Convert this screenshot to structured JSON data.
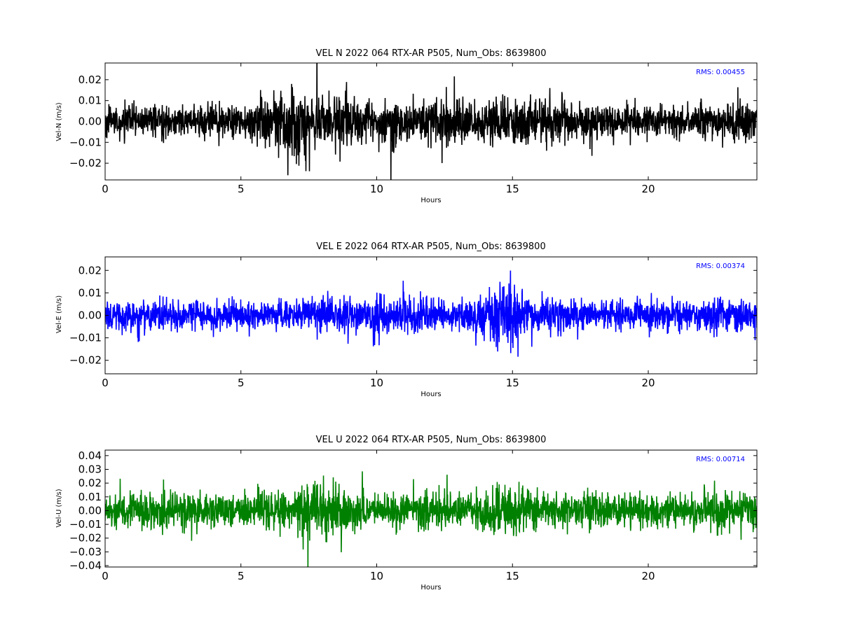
{
  "chart_data": [
    {
      "type": "line",
      "title": "VEL N 2022 064 RTX-AR  P505, Num_Obs: 8639800",
      "xlabel": "Hours",
      "ylabel": "Vel-N (m/s)",
      "xlim": [
        0,
        24
      ],
      "ylim": [
        -0.028,
        0.028
      ],
      "xticks": [
        0,
        5,
        10,
        15,
        20
      ],
      "yticks": [
        -0.02,
        -0.01,
        0.0,
        0.01,
        0.02
      ],
      "ytick_labels": [
        "−0.02",
        "−0.01",
        "0.00",
        "0.01",
        "0.02"
      ],
      "grid": false,
      "annotation": "RMS:  0.00455",
      "annotation_color": "#0000ff",
      "series": [
        {
          "color": "#000000",
          "amplitude_envelope": {
            "x": [
              0,
              1,
              2,
              3,
              4,
              5,
              5.5,
              6,
              6.5,
              7,
              7.3,
              8,
              8.5,
              9,
              9.5,
              10,
              11,
              12,
              12.5,
              13,
              14,
              15,
              16,
              17,
              18,
              19,
              20,
              21,
              22,
              23,
              24
            ],
            "y": [
              0.0085,
              0.0085,
              0.009,
              0.0085,
              0.0085,
              0.0085,
              0.013,
              0.016,
              0.018,
              0.019,
              0.02,
              0.017,
              0.015,
              0.014,
              0.012,
              0.011,
              0.012,
              0.013,
              0.015,
              0.014,
              0.013,
              0.014,
              0.012,
              0.011,
              0.0095,
              0.009,
              0.0085,
              0.009,
              0.009,
              0.01,
              0.011
            ]
          }
        }
      ]
    },
    {
      "type": "line",
      "title": "VEL E 2022 064 RTX-AR  P505, Num_Obs: 8639800",
      "xlabel": "Hours",
      "ylabel": "Vel-E (m/s)",
      "xlim": [
        0,
        24
      ],
      "ylim": [
        -0.026,
        0.026
      ],
      "xticks": [
        0,
        5,
        10,
        15,
        20
      ],
      "yticks": [
        -0.02,
        -0.01,
        0.0,
        0.01,
        0.02
      ],
      "ytick_labels": [
        "−0.02",
        "−0.01",
        "0.00",
        "0.01",
        "0.02"
      ],
      "grid": false,
      "annotation": "RMS:  0.00374",
      "annotation_color": "#0000ff",
      "series": [
        {
          "color": "#0000ff",
          "amplitude_envelope": {
            "x": [
              0,
              1,
              2,
              3,
              4,
              5,
              6,
              7,
              7.5,
              8,
              9,
              10,
              10.5,
              11,
              12,
              13,
              13.5,
              14,
              14.5,
              15,
              15.5,
              16,
              17,
              18,
              19,
              20,
              21,
              22,
              23,
              24
            ],
            "y": [
              0.008,
              0.0085,
              0.0085,
              0.008,
              0.0075,
              0.007,
              0.007,
              0.008,
              0.01,
              0.009,
              0.0085,
              0.009,
              0.01,
              0.01,
              0.009,
              0.008,
              0.01,
              0.013,
              0.016,
              0.015,
              0.012,
              0.009,
              0.0085,
              0.008,
              0.0075,
              0.007,
              0.0075,
              0.008,
              0.009,
              0.0105
            ]
          }
        }
      ]
    },
    {
      "type": "line",
      "title": "VEL U 2022 064 RTX-AR  P505, Num_Obs: 8639800",
      "xlabel": "Hours",
      "ylabel": "Vel-U (m/s)",
      "xlim": [
        0,
        24
      ],
      "ylim": [
        -0.041,
        0.044
      ],
      "xticks": [
        0,
        5,
        10,
        15,
        20
      ],
      "yticks": [
        -0.04,
        -0.03,
        -0.02,
        -0.01,
        0.0,
        0.01,
        0.02,
        0.03,
        0.04
      ],
      "ytick_labels": [
        "−0.04",
        "−0.03",
        "−0.02",
        "−0.01",
        "0.00",
        "0.01",
        "0.02",
        "0.03",
        "0.04"
      ],
      "grid": false,
      "annotation": "RMS:  0.00714",
      "annotation_color": "#0000ff",
      "series": [
        {
          "color": "#008000",
          "amplitude_envelope": {
            "x": [
              0,
              1,
              2,
              3,
              4,
              5,
              6,
              6.5,
              7,
              7.5,
              8,
              8.5,
              9,
              9.5,
              10,
              10.5,
              11,
              12,
              13,
              14,
              14.5,
              15,
              15.5,
              16,
              17,
              18,
              18.5,
              19,
              20,
              21,
              22,
              23,
              24
            ],
            "y": [
              0.015,
              0.016,
              0.017,
              0.015,
              0.014,
              0.013,
              0.015,
              0.017,
              0.016,
              0.022,
              0.025,
              0.024,
              0.018,
              0.015,
              0.014,
              0.018,
              0.017,
              0.016,
              0.014,
              0.016,
              0.022,
              0.025,
              0.021,
              0.017,
              0.015,
              0.017,
              0.015,
              0.014,
              0.013,
              0.014,
              0.016,
              0.016,
              0.017
            ]
          }
        }
      ]
    }
  ]
}
